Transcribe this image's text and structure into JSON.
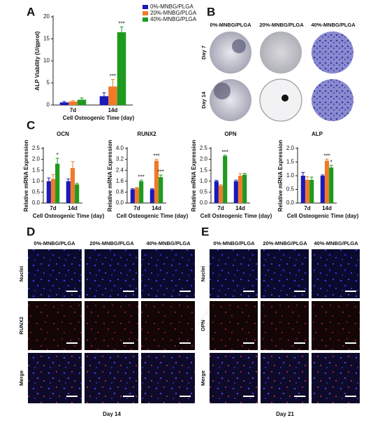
{
  "figure": {
    "panel_labels": [
      "A",
      "B",
      "C",
      "D",
      "E"
    ],
    "watermark": "Journal Pre-proof"
  },
  "chart_data": [
    {
      "type": "bar",
      "categories": [
        "7d",
        "14d"
      ],
      "x_label": "Cell Osteogenic Time (day)",
      "y_label": "ALP Viability (U/gprot)",
      "ylim": [
        0,
        20
      ],
      "yticks": [
        0,
        5,
        10,
        15,
        20
      ],
      "legend": "upper right",
      "series": [
        {
          "name": "0%-MNBG/PLGA",
          "color": "#1a1ab8",
          "values": [
            0.6,
            2.0
          ],
          "errors": [
            0.2,
            0.8
          ]
        },
        {
          "name": "20%-MNBG/PLGA",
          "color": "#f07a2a",
          "values": [
            0.8,
            4.2
          ],
          "errors": [
            0.2,
            1.6
          ],
          "significance": [
            null,
            "***"
          ]
        },
        {
          "name": "40%-MNBG/PLGA",
          "color": "#1e9a1e",
          "values": [
            1.2,
            16.5
          ],
          "errors": [
            0.4,
            1.2
          ],
          "significance": [
            null,
            "***"
          ]
        }
      ]
    },
    {
      "type": "bar",
      "title": "OCN",
      "categories": [
        "7d",
        "14d"
      ],
      "x_label": "Cell Osteogenic Time (day)",
      "y_label": "Relative mRNA Expression",
      "ylim": [
        0,
        2.5
      ],
      "yticks": [
        {
          "value": 0,
          "label": "0.0"
        },
        0.5,
        {
          "value": 1,
          "label": "1.0"
        },
        1.5,
        {
          "value": 2,
          "label": "2.0"
        },
        2.5
      ],
      "series": [
        {
          "color": "#1a1ab8",
          "values": [
            1.0,
            1.0
          ],
          "errors": [
            0.15,
            0.1
          ]
        },
        {
          "color": "#f07a2a",
          "values": [
            1.1,
            1.6
          ],
          "errors": [
            0.2,
            0.3
          ]
        },
        {
          "color": "#1e9a1e",
          "values": [
            1.8,
            0.85
          ],
          "errors": [
            0.25,
            0.05
          ],
          "significance": [
            "*",
            null
          ]
        }
      ]
    },
    {
      "type": "bar",
      "title": "RUNX2",
      "categories": [
        "7d",
        "14d"
      ],
      "x_label": "Cell Osteogenic Time (day)",
      "y_label": "Relative mRNA Expression",
      "ylim": [
        0,
        4
      ],
      "yticks": [
        {
          "value": 0,
          "label": "0.0"
        },
        0.8,
        1.6,
        2.4,
        3.2,
        {
          "value": 4,
          "label": "4.0"
        }
      ],
      "series": [
        {
          "color": "#1a1ab8",
          "values": [
            1.0,
            1.0
          ],
          "errors": [
            0.05,
            0.05
          ]
        },
        {
          "color": "#f07a2a",
          "values": [
            1.1,
            3.1
          ],
          "errors": [
            0.05,
            0.1
          ],
          "significance": [
            null,
            "***"
          ]
        },
        {
          "color": "#1e9a1e",
          "values": [
            1.6,
            1.9
          ],
          "errors": [
            0.08,
            0.15
          ],
          "significance": [
            "***",
            "***"
          ]
        }
      ]
    },
    {
      "type": "bar",
      "title": "OPN",
      "categories": [
        "7d",
        "14d"
      ],
      "x_label": "Cell Osteogenic Time (day)",
      "y_label": "Relative mRNA Expression",
      "ylim": [
        0,
        2.5
      ],
      "yticks": [
        {
          "value": 0,
          "label": "0.0"
        },
        0.5,
        {
          "value": 1,
          "label": "1.0"
        },
        1.5,
        {
          "value": 2,
          "label": "2.0"
        },
        2.5
      ],
      "series": [
        {
          "color": "#1a1ab8",
          "values": [
            1.0,
            1.0
          ],
          "errors": [
            0.04,
            0.05
          ]
        },
        {
          "color": "#f07a2a",
          "values": [
            0.8,
            1.25
          ],
          "errors": [
            0.04,
            0.1
          ]
        },
        {
          "color": "#1e9a1e",
          "values": [
            2.15,
            1.3
          ],
          "errors": [
            0.04,
            0.06
          ],
          "significance": [
            "***",
            null
          ]
        }
      ]
    },
    {
      "type": "bar",
      "title": "ALP",
      "categories": [
        "7d",
        "14d"
      ],
      "x_label": "Cell Osteogenic Time (day)",
      "y_label": "Relative mRNA Expression",
      "ylim": [
        0,
        2
      ],
      "yticks": [
        {
          "value": 0,
          "label": "0.0"
        },
        0.5,
        {
          "value": 1,
          "label": "1.0"
        },
        1.5,
        {
          "value": 2,
          "label": "2.0"
        }
      ],
      "series": [
        {
          "color": "#1a1ab8",
          "values": [
            1.0,
            1.0
          ],
          "errors": [
            0.12,
            0.03
          ]
        },
        {
          "color": "#f07a2a",
          "values": [
            0.85,
            1.55
          ],
          "errors": [
            0.12,
            0.06
          ],
          "significance": [
            null,
            "***"
          ]
        },
        {
          "color": "#1e9a1e",
          "values": [
            0.85,
            1.3
          ],
          "errors": [
            0.1,
            0.08
          ],
          "significance": [
            null,
            "*"
          ]
        }
      ]
    }
  ],
  "panel_b": {
    "columns": [
      "0%-MNBG/PLGA",
      "20%-MNBG/PLGA",
      "40%-MNBG/PLGA"
    ],
    "rows": [
      "Day 7",
      "Day 14"
    ]
  },
  "panel_d": {
    "columns": [
      "0%-MNBG/PLGA",
      "20%-MNBG/PLGA",
      "40%-MNBG/PLGA"
    ],
    "rows": [
      "Nuclei",
      "RUNX2",
      "Merge"
    ],
    "caption": "Day 14"
  },
  "panel_e": {
    "columns": [
      "0%-MNBG/PLGA",
      "20%-MNBG/PLGA",
      "40%-MNBG/PLGA"
    ],
    "rows": [
      "Nuclei",
      "OPN",
      "Merge"
    ],
    "caption": "Day 21"
  }
}
